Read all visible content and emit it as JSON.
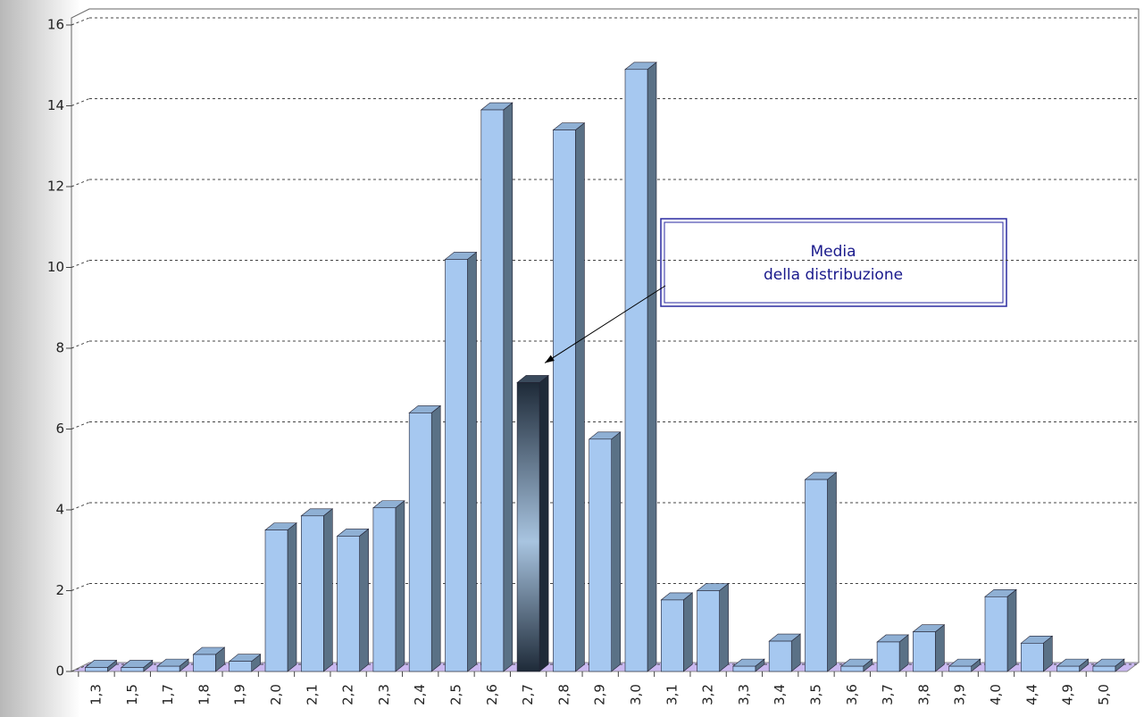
{
  "chart_data": {
    "type": "bar3d",
    "categories": [
      "1,3",
      "1,5",
      "1,7",
      "1,8",
      "1,9",
      "2,0",
      "2,1",
      "2,2",
      "2,3",
      "2,4",
      "2,5",
      "2,6",
      "2,7",
      "2,8",
      "2,9",
      "3,0",
      "3,1",
      "3,2",
      "3,3",
      "3,4",
      "3,5",
      "3,6",
      "3,7",
      "3,8",
      "3,9",
      "4,0",
      "4,4",
      "4,9",
      "5,0"
    ],
    "values": [
      0.1,
      0.1,
      0.13,
      0.42,
      0.25,
      3.5,
      3.85,
      3.35,
      4.05,
      6.4,
      10.2,
      13.9,
      7.15,
      13.4,
      5.75,
      14.9,
      1.77,
      2.0,
      0.13,
      0.75,
      4.75,
      0.13,
      0.73,
      0.98,
      0.13,
      1.85,
      0.7,
      0.13,
      0.13
    ],
    "color": "#a6c8f0",
    "highlight": "2,7",
    "highlight_color": "#1e2a38",
    "ylim": [
      0,
      16
    ],
    "yticks": [
      0,
      2,
      4,
      6,
      8,
      10,
      12,
      14,
      16
    ],
    "grid": true,
    "annotation": {
      "text": [
        "Media",
        "della distribuzione"
      ],
      "target": "2,7"
    }
  }
}
